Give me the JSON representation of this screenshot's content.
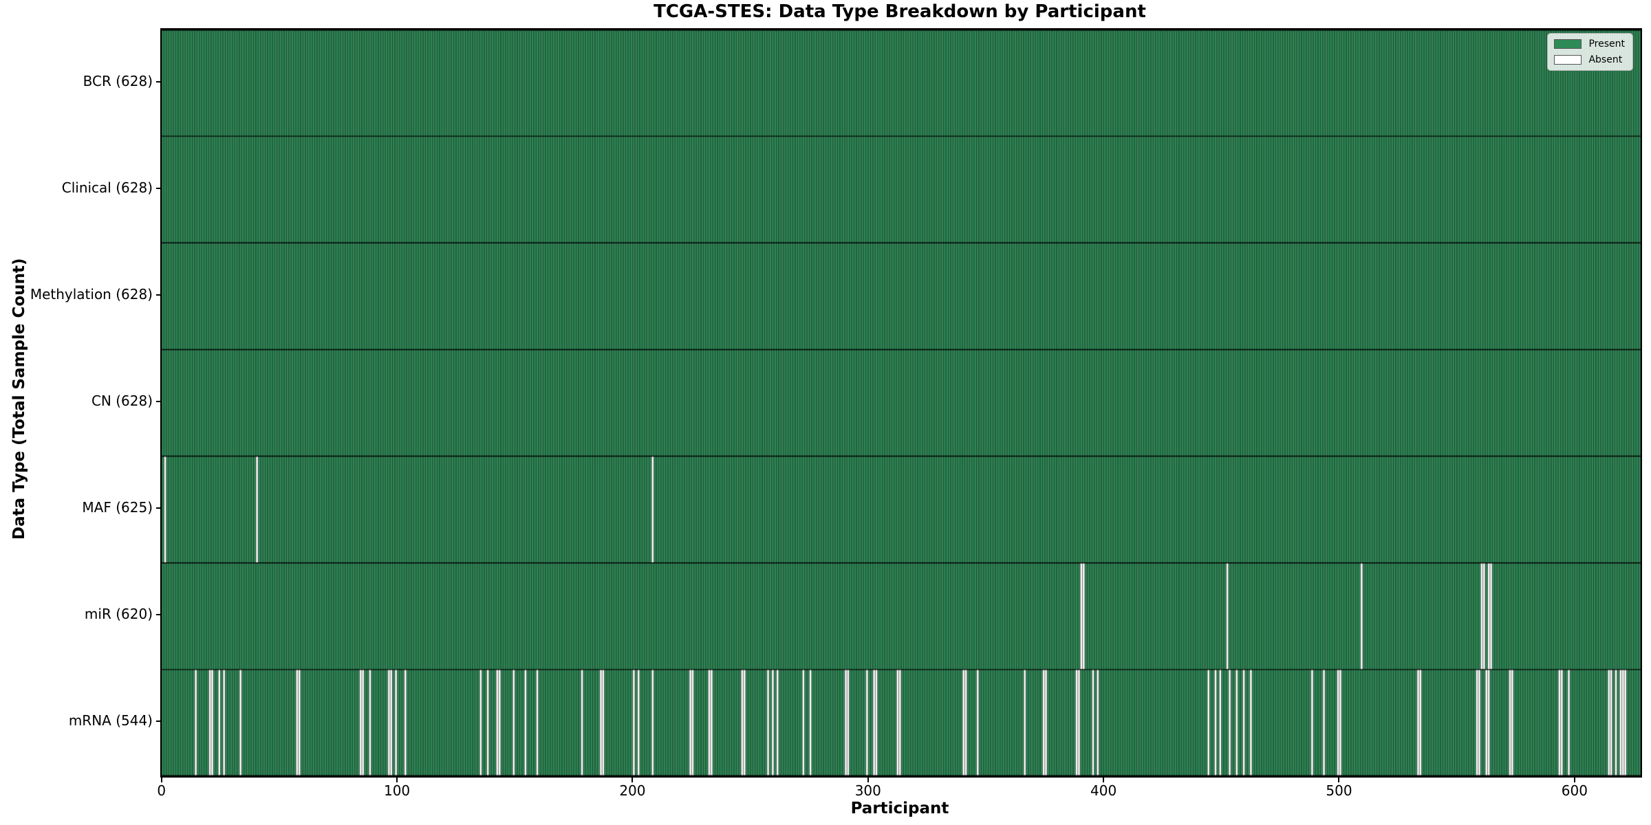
{
  "chart_data": {
    "type": "heatmap",
    "title": "TCGA-STES: Data Type Breakdown by Participant",
    "xlabel": "Participant",
    "ylabel": "Data Type (Total Sample Count)",
    "n_participants": 628,
    "x_ticks": [
      0,
      100,
      200,
      300,
      400,
      500,
      600
    ],
    "colors": {
      "present": "#2e8b57",
      "absent": "#ffffff",
      "edge": "#000000"
    },
    "legend": [
      {
        "label": "Present",
        "color": "#2e8b57"
      },
      {
        "label": "Absent",
        "color": "#ffffff"
      }
    ],
    "rows": [
      {
        "label": "BCR (628)",
        "name": "BCR",
        "count": 628,
        "absent": []
      },
      {
        "label": "Clinical (628)",
        "name": "Clinical",
        "count": 628,
        "absent": []
      },
      {
        "label": "Methylation (628)",
        "name": "Methylation",
        "count": 628,
        "absent": []
      },
      {
        "label": "CN (628)",
        "name": "CN",
        "count": 628,
        "absent": []
      },
      {
        "label": "MAF (625)",
        "name": "MAF",
        "count": 625,
        "absent": [
          1,
          40,
          208
        ]
      },
      {
        "label": "miR (620)",
        "name": "miR",
        "count": 620,
        "absent": [
          390,
          391,
          452,
          509,
          560,
          561,
          563,
          564
        ]
      },
      {
        "label": "mRNA (544)",
        "name": "mRNA",
        "count": 544,
        "absent": [
          14,
          20,
          21,
          24,
          26,
          33,
          57,
          58,
          84,
          85,
          88,
          96,
          97,
          99,
          103,
          135,
          138,
          142,
          143,
          149,
          154,
          159,
          178,
          186,
          187,
          200,
          202,
          208,
          224,
          225,
          232,
          233,
          246,
          247,
          257,
          259,
          261,
          272,
          275,
          290,
          291,
          299,
          302,
          303,
          312,
          313,
          340,
          341,
          346,
          366,
          374,
          375,
          388,
          389,
          395,
          397,
          444,
          447,
          449,
          453,
          456,
          459,
          462,
          488,
          493,
          499,
          500,
          533,
          534,
          558,
          559,
          562,
          563,
          572,
          573,
          593,
          594,
          597,
          614,
          615,
          617,
          619,
          620,
          621
        ]
      }
    ]
  }
}
